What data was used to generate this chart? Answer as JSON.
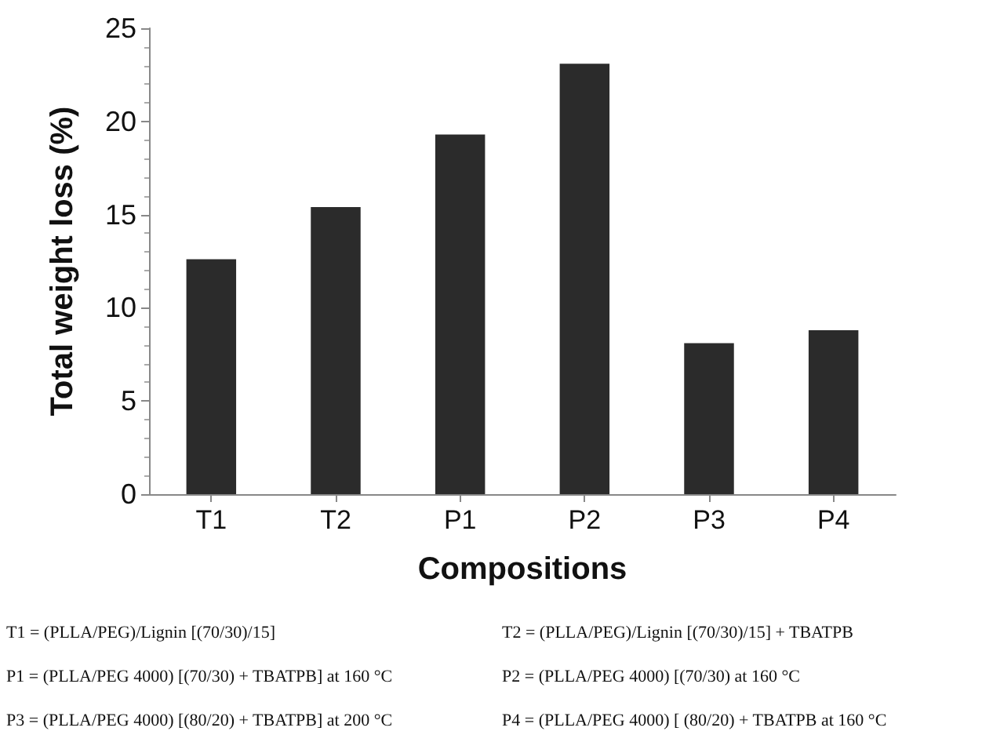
{
  "chart_data": {
    "type": "bar",
    "xlabel": "Compositions",
    "ylabel": "Total weight loss (%)",
    "categories": [
      "T1",
      "T2",
      "P1",
      "P2",
      "P3",
      "P4"
    ],
    "values": [
      12.6,
      15.4,
      19.3,
      23.1,
      8.1,
      8.8
    ],
    "color": "#2b2b2b",
    "ylim": [
      0,
      25
    ],
    "yticks": [
      0,
      5,
      10,
      15,
      20,
      25
    ],
    "grid": false,
    "annotations": [
      "T1 = (PLLA/PEG)/Lignin [(70/30)/15]",
      "T2 = (PLLA/PEG)/Lignin [(70/30)/15] + TBATPB",
      "P1 = (PLLA/PEG 4000) [(70/30) + TBATPB] at 160 °C",
      "P2 = (PLLA/PEG 4000) [(70/30) at 160 °C",
      "P3 = (PLLA/PEG 4000) [(80/20) + TBATPB] at 200 °C",
      "P4 = (PLLA/PEG 4000) [ (80/20) + TBATPB at 160 °C"
    ]
  }
}
